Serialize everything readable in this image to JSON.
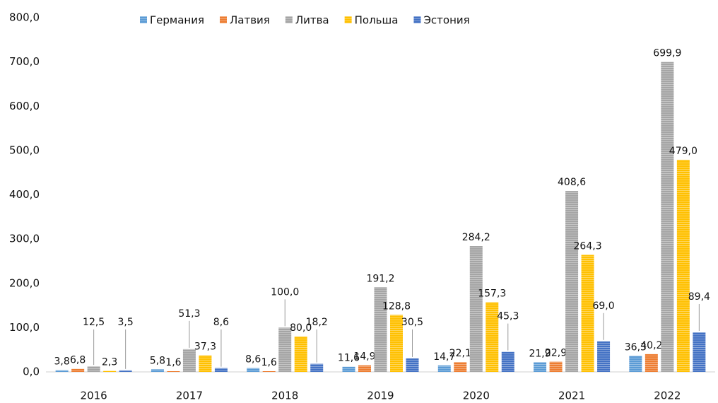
{
  "chart_data": {
    "type": "bar",
    "categories": [
      "2016",
      "2017",
      "2018",
      "2019",
      "2020",
      "2021",
      "2022"
    ],
    "series": [
      {
        "name": "Германия",
        "color": "#5b9bd5",
        "values": [
          3.8,
          5.8,
          8.6,
          11.6,
          14.7,
          21.9,
          36.3
        ],
        "value_labels": [
          "3,8",
          "5,8",
          "8,6",
          "11,6",
          "14,7",
          "21,9",
          "36,3"
        ]
      },
      {
        "name": "Латвия",
        "color": "#ed7d31",
        "values": [
          6.8,
          1.6,
          1.6,
          14.9,
          22.1,
          22.9,
          40.2
        ],
        "value_labels": [
          "6,8",
          "1,6",
          "1,6",
          "14,9",
          "22,1",
          "22,9",
          "40,2"
        ]
      },
      {
        "name": "Литва",
        "color": "#a5a5a5",
        "values": [
          12.5,
          51.3,
          100.0,
          191.2,
          284.2,
          408.6,
          699.9
        ],
        "value_labels": [
          "12,5",
          "51,3",
          "100,0",
          "191,2",
          "284,2",
          "408,6",
          "699,9"
        ]
      },
      {
        "name": "Польша",
        "color": "#ffc000",
        "values": [
          2.3,
          37.3,
          80.0,
          128.8,
          157.3,
          264.3,
          479.0
        ],
        "value_labels": [
          "2,3",
          "37,3",
          "80,0",
          "128,8",
          "157,3",
          "264,3",
          "479,0"
        ]
      },
      {
        "name": "Эстония",
        "color": "#4472c4",
        "values": [
          3.5,
          8.6,
          18.2,
          30.5,
          45.3,
          69.0,
          89.4
        ],
        "value_labels": [
          "3,5",
          "8,6",
          "18,2",
          "30,5",
          "45,3",
          "69,0",
          "89,4"
        ]
      }
    ],
    "ylim": [
      0,
      800
    ],
    "yticks": [
      {
        "value": 0,
        "label": "0,0"
      },
      {
        "value": 100,
        "label": "100,0"
      },
      {
        "value": 200,
        "label": "200,0"
      },
      {
        "value": 300,
        "label": "300,0"
      },
      {
        "value": 400,
        "label": "400,0"
      },
      {
        "value": 500,
        "label": "500,0"
      },
      {
        "value": 600,
        "label": "600,0"
      },
      {
        "value": 700,
        "label": "700,0"
      },
      {
        "value": 800,
        "label": "800,0"
      }
    ],
    "grid": false,
    "legend": "top"
  }
}
